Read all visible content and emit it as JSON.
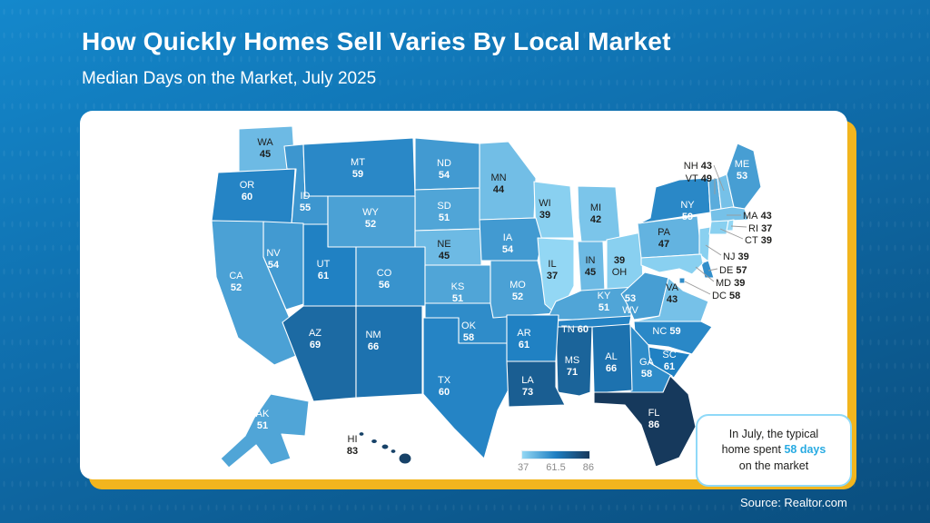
{
  "header": {
    "title": "How Quickly Homes Sell Varies By Local Market",
    "subtitle": "Median Days on the Market, July 2025"
  },
  "chart_data": {
    "type": "choropleth_map",
    "title": "How Quickly Homes Sell Varies By Local Market",
    "subtitle": "Median Days on the Market, July 2025",
    "unit": "median days on the market",
    "color_scale": {
      "min": 37,
      "mid": 61.5,
      "max": 86,
      "min_color": "#93D7F4",
      "mid_color": "#1E7FC2",
      "max_color": "#16395C",
      "dark_text_color": "#1d1d1b",
      "light_text_color": "#ffffff",
      "text_light_threshold": 49
    },
    "legend": {
      "position": "bottom-center",
      "ticks": [
        "37",
        "61.5",
        "86"
      ]
    },
    "states": [
      {
        "abbr": "WA",
        "value": 45
      },
      {
        "abbr": "OR",
        "value": 60
      },
      {
        "abbr": "CA",
        "value": 52
      },
      {
        "abbr": "NV",
        "value": 54
      },
      {
        "abbr": "ID",
        "value": 55
      },
      {
        "abbr": "MT",
        "value": 59
      },
      {
        "abbr": "WY",
        "value": 52
      },
      {
        "abbr": "UT",
        "value": 61
      },
      {
        "abbr": "CO",
        "value": 56
      },
      {
        "abbr": "AZ",
        "value": 69
      },
      {
        "abbr": "NM",
        "value": 66
      },
      {
        "abbr": "ND",
        "value": 54
      },
      {
        "abbr": "SD",
        "value": 51
      },
      {
        "abbr": "NE",
        "value": 45
      },
      {
        "abbr": "KS",
        "value": 51
      },
      {
        "abbr": "OK",
        "value": 58
      },
      {
        "abbr": "TX",
        "value": 60
      },
      {
        "abbr": "MN",
        "value": 44
      },
      {
        "abbr": "IA",
        "value": 54
      },
      {
        "abbr": "MO",
        "value": 52
      },
      {
        "abbr": "AR",
        "value": 61
      },
      {
        "abbr": "LA",
        "value": 73
      },
      {
        "abbr": "WI",
        "value": 39
      },
      {
        "abbr": "IL",
        "value": 37
      },
      {
        "abbr": "MS",
        "value": 71
      },
      {
        "abbr": "MI",
        "value": 42
      },
      {
        "abbr": "IN",
        "value": 45
      },
      {
        "abbr": "KY",
        "value": 51
      },
      {
        "abbr": "TN",
        "value": 60
      },
      {
        "abbr": "AL",
        "value": 66
      },
      {
        "abbr": "OH",
        "value": 39
      },
      {
        "abbr": "GA",
        "value": 58
      },
      {
        "abbr": "FL",
        "value": 86
      },
      {
        "abbr": "WV",
        "value": 53
      },
      {
        "abbr": "VA",
        "value": 43
      },
      {
        "abbr": "NC",
        "value": 59
      },
      {
        "abbr": "SC",
        "value": 61
      },
      {
        "abbr": "PA",
        "value": 47
      },
      {
        "abbr": "NY",
        "value": 59
      },
      {
        "abbr": "ME",
        "value": 53
      },
      {
        "abbr": "NH",
        "value": 43
      },
      {
        "abbr": "VT",
        "value": 49
      },
      {
        "abbr": "MA",
        "value": 43
      },
      {
        "abbr": "RI",
        "value": 37
      },
      {
        "abbr": "CT",
        "value": 39
      },
      {
        "abbr": "NJ",
        "value": 39
      },
      {
        "abbr": "DE",
        "value": 57
      },
      {
        "abbr": "MD",
        "value": 39
      },
      {
        "abbr": "DC",
        "value": 58
      },
      {
        "abbr": "AK",
        "value": 51
      },
      {
        "abbr": "HI",
        "value": 83
      }
    ]
  },
  "callout": {
    "line1": "In July, the typical",
    "line2_prefix": "home spent",
    "line2_highlight": "58 days",
    "line3": "on the market",
    "highlight_color": "#29ABE2"
  },
  "footer": {
    "source": "Source: Realtor.com"
  },
  "colors": {
    "background_top": "#1488CC",
    "background_bottom": "#0A4D7D",
    "card": "#FFFFFF",
    "accent_yellow": "#F2B51E",
    "callout_border": "#8FD9F8",
    "legend_tick_text": "#8A8A8A"
  }
}
